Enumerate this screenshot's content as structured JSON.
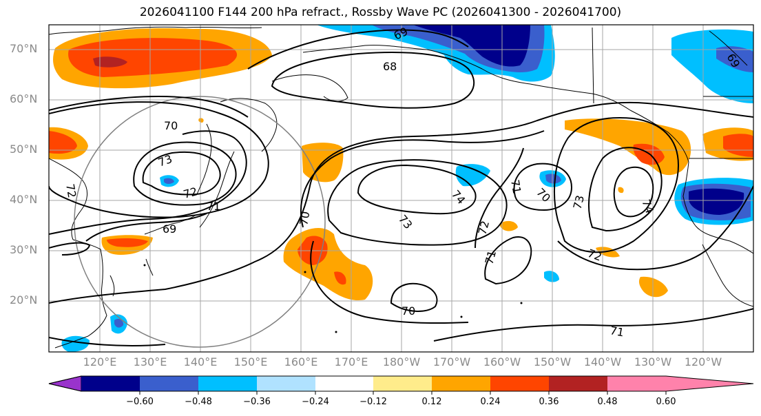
{
  "title": "2026041100 F144 200 hPa refract., Rossby Wave PC (2026041300 - 2026041700)",
  "lat_labels": [
    "70°N",
    "60°N",
    "50°N",
    "40°N",
    "30°N",
    "20°N"
  ],
  "lon_labels": [
    "120°E",
    "130°E",
    "140°E",
    "150°E",
    "160°E",
    "170°E",
    "180°W",
    "170°W",
    "160°W",
    "150°W",
    "140°W",
    "130°W",
    "120°W"
  ],
  "contour_labels": {
    "c69": "69",
    "c68": "68",
    "c70a": "70",
    "c73a": "73",
    "c72a": "72",
    "c72b": "72",
    "c71a": "71",
    "c69b": "69",
    "c70b": "70",
    "c73b": "73",
    "c74a": "74",
    "c72c": "72",
    "c71b": "71",
    "c71c": "71",
    "c70c": "70",
    "c73c": "73",
    "c74b": "74",
    "c72d": "72",
    "c70d": "70",
    "c71d": "71",
    "c69c": "69"
  },
  "colorbar": {
    "ticks": [
      "−0.60",
      "−0.48",
      "−0.36",
      "−0.24",
      "−0.12",
      "0.12",
      "0.24",
      "0.36",
      "0.48",
      "0.60"
    ],
    "colors": [
      "#9933cc",
      "#00008b",
      "#3a5fcd",
      "#00bfff",
      "#b0e2ff",
      "#ffffff",
      "#ffec8b",
      "#ffa500",
      "#ff4500",
      "#b22222",
      "#ff82ab"
    ]
  }
}
